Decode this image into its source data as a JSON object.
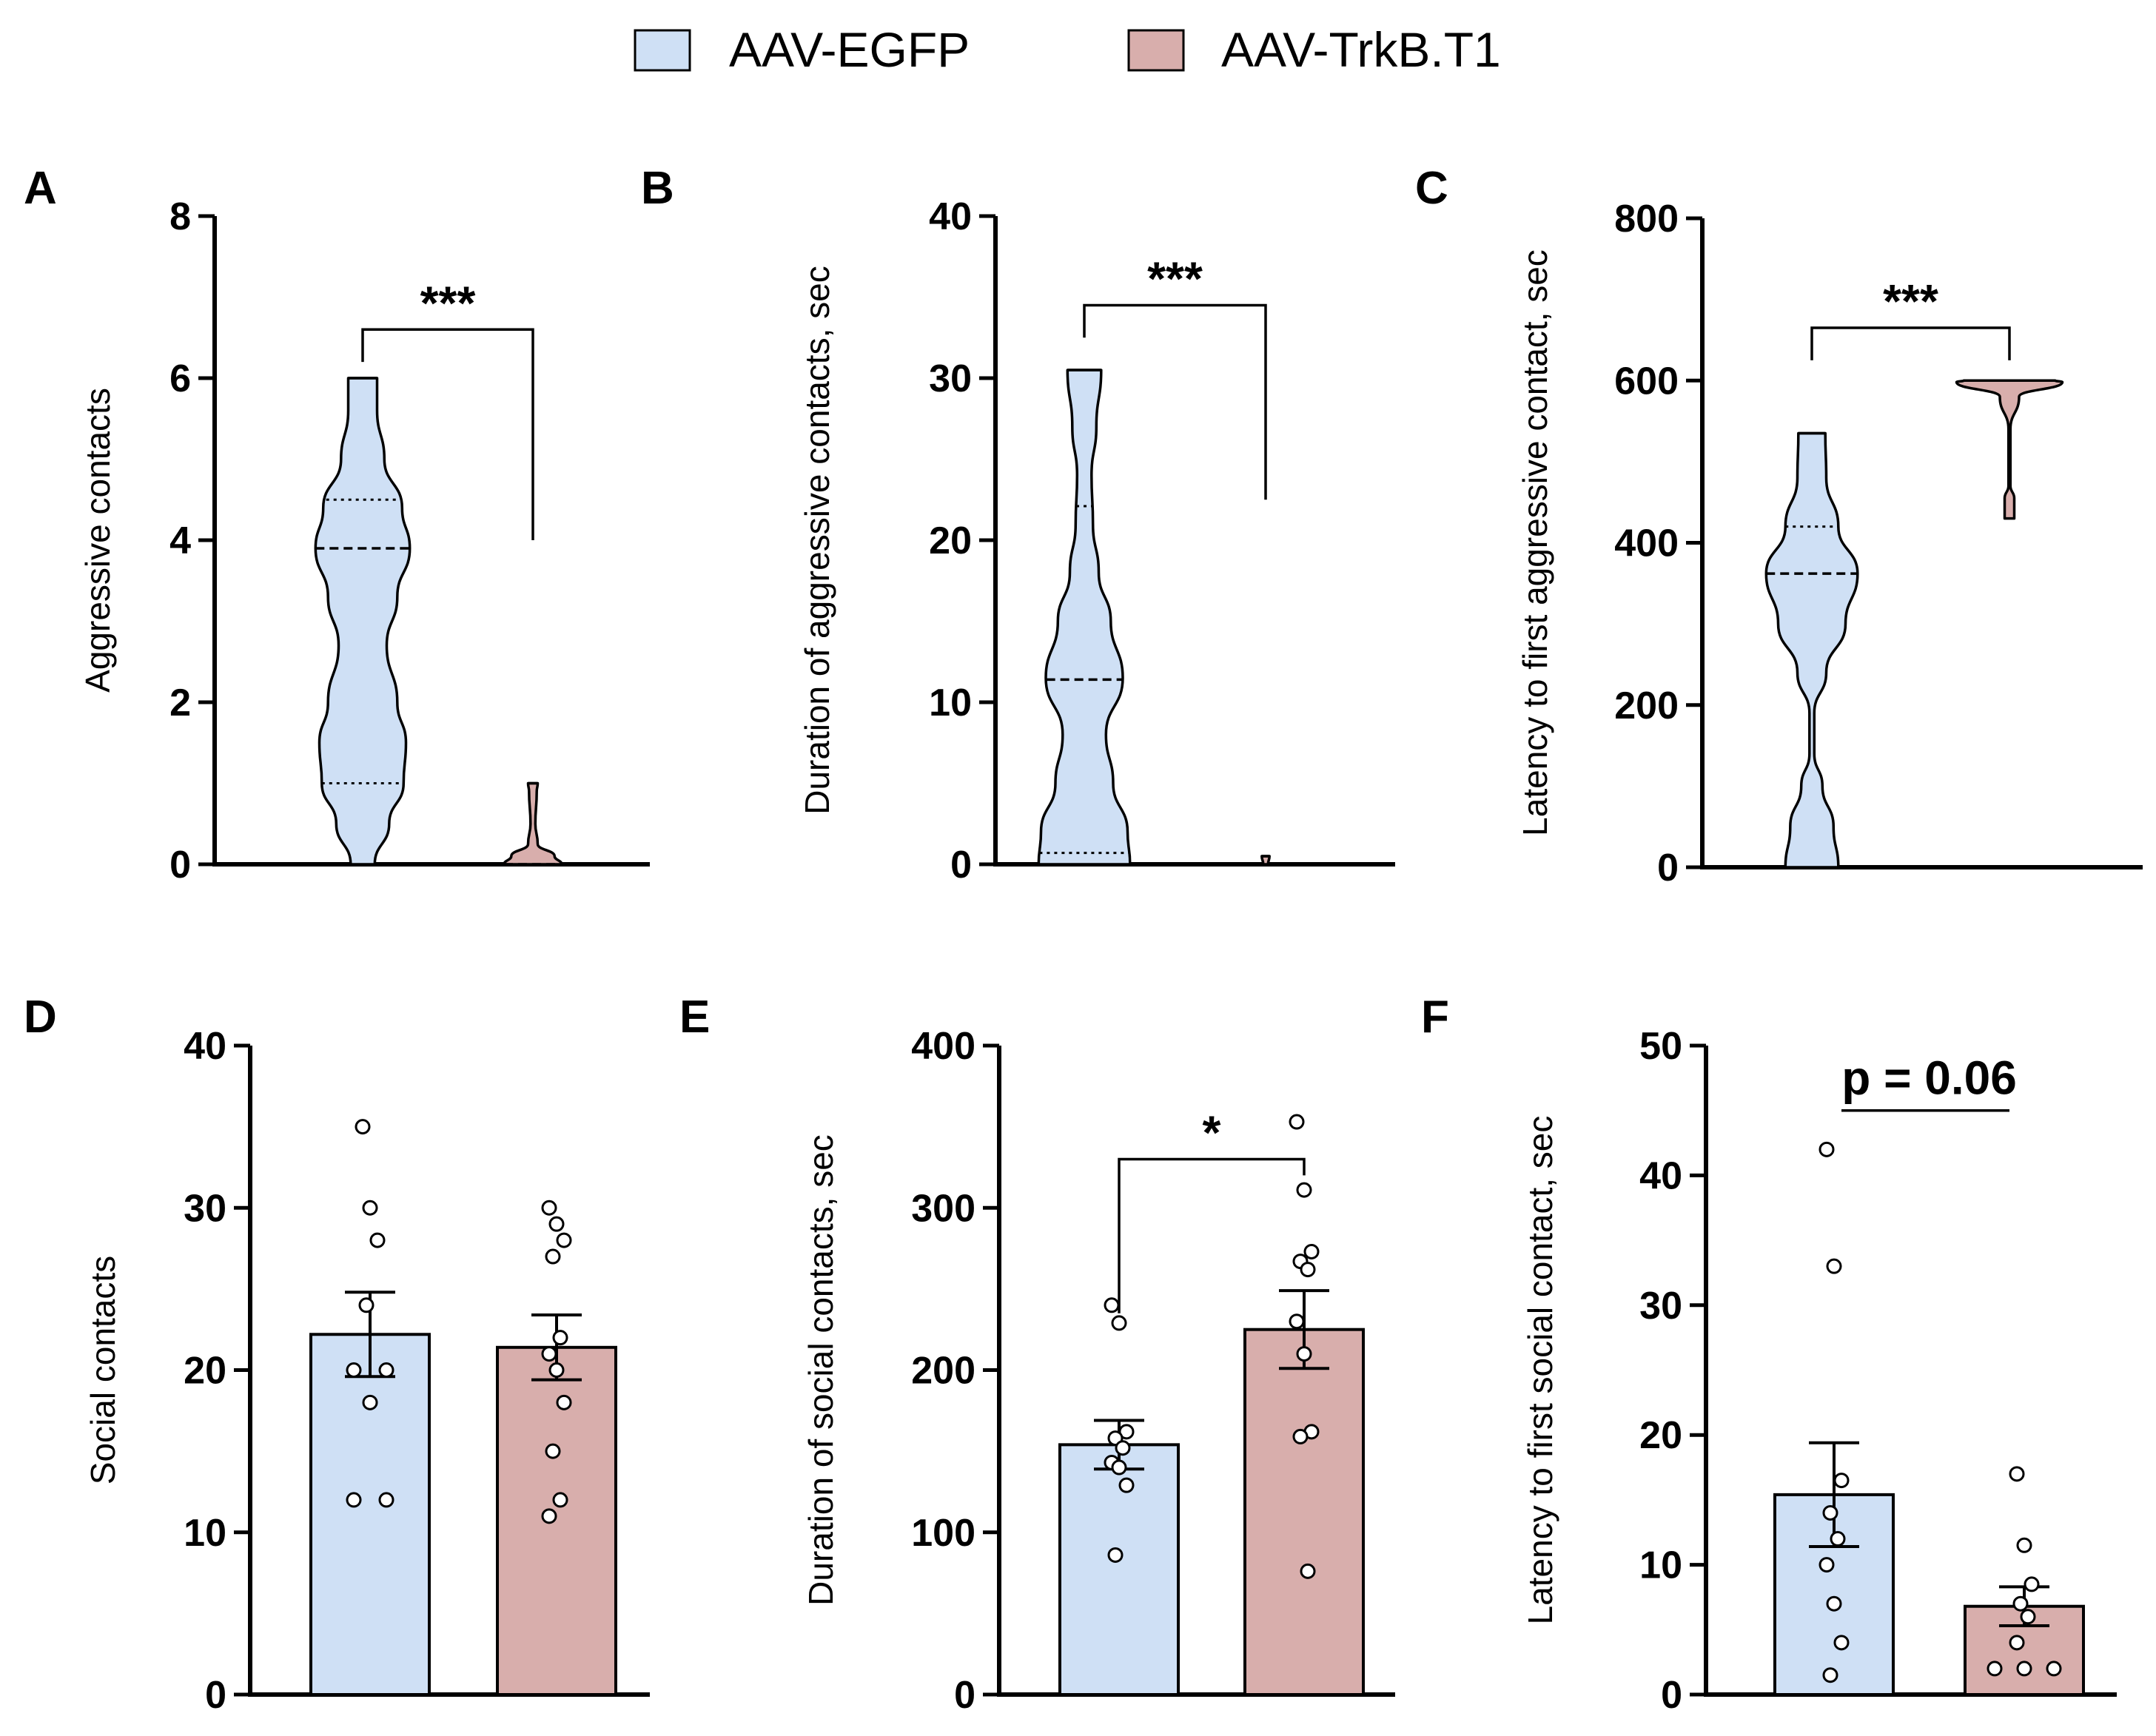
{
  "colors": {
    "egfp": "#cfe0f5",
    "trkb": "#d8aeac",
    "axis": "#000000"
  },
  "legend": {
    "items": [
      {
        "label": "AAV-EGFP",
        "color": "#cfe0f5"
      },
      {
        "label": "AAV-TrkB.T1",
        "color": "#d8aeac"
      }
    ]
  },
  "chart_data": [
    {
      "panel": "A",
      "type": "violin",
      "ylabel": "Aggressive contacts",
      "ylim": [
        0,
        8
      ],
      "yticks": [
        "0",
        "2",
        "4",
        "6",
        "8"
      ],
      "groups": [
        {
          "name": "AAV-EGFP",
          "min": 0,
          "max": 6,
          "median": 3.9,
          "q1": 1.0,
          "q3": 4.5,
          "profile": [
            [
              0,
              0.25
            ],
            [
              0.5,
              0.55
            ],
            [
              1,
              0.85
            ],
            [
              1.5,
              0.9
            ],
            [
              2,
              0.72
            ],
            [
              2.7,
              0.5
            ],
            [
              3.3,
              0.72
            ],
            [
              3.9,
              0.98
            ],
            [
              4.4,
              0.82
            ],
            [
              5,
              0.45
            ],
            [
              5.6,
              0.3
            ],
            [
              6,
              0.3
            ]
          ]
        },
        {
          "name": "AAV-TrkB.T1",
          "min": 0,
          "max": 1,
          "median": 0,
          "q1": 0,
          "q3": 0,
          "profile": [
            [
              0,
              0.6
            ],
            [
              0.1,
              0.45
            ],
            [
              0.25,
              0.1
            ],
            [
              0.5,
              0.05
            ],
            [
              0.9,
              0.08
            ],
            [
              1,
              0.1
            ]
          ]
        }
      ],
      "significance": {
        "label": "***",
        "from": 0,
        "to": 1,
        "y": 6.6,
        "leftEnd": 6.2,
        "rightEnd": 4.0
      }
    },
    {
      "panel": "B",
      "type": "violin",
      "ylabel": "Duration of aggressive contacts, sec",
      "ylim": [
        0,
        40
      ],
      "yticks": [
        "0",
        "10",
        "20",
        "30",
        "40"
      ],
      "groups": [
        {
          "name": "AAV-EGFP",
          "min": 0,
          "max": 30.5,
          "median": 11.4,
          "q1": 0.7,
          "q3": 22.1,
          "profile": [
            [
              0,
              0.95
            ],
            [
              2,
              0.9
            ],
            [
              5,
              0.6
            ],
            [
              8,
              0.45
            ],
            [
              11.5,
              0.8
            ],
            [
              15,
              0.55
            ],
            [
              18,
              0.3
            ],
            [
              21,
              0.18
            ],
            [
              24,
              0.15
            ],
            [
              27,
              0.25
            ],
            [
              30.5,
              0.35
            ]
          ]
        },
        {
          "name": "AAV-TrkB.T1",
          "min": 0,
          "max": 0.5,
          "median": 0,
          "q1": 0,
          "q3": 0,
          "profile": [
            [
              0,
              0.05
            ],
            [
              0.5,
              0.08
            ]
          ]
        }
      ],
      "significance": {
        "label": "***",
        "from": 0,
        "to": 1,
        "y": 34.5,
        "leftEnd": 32.5,
        "rightEnd": 22.5
      }
    },
    {
      "panel": "C",
      "type": "violin",
      "ylabel": "Latency to first aggressive contact, sec",
      "ylim": [
        0,
        800
      ],
      "yticks": [
        "0",
        "200",
        "400",
        "600",
        "800"
      ],
      "groups": [
        {
          "name": "AAV-EGFP",
          "min": 0,
          "max": 535,
          "median": 362,
          "q1": 362,
          "q3": 420,
          "profile": [
            [
              0,
              0.55
            ],
            [
              50,
              0.45
            ],
            [
              100,
              0.22
            ],
            [
              140,
              0.05
            ],
            [
              190,
              0.05
            ],
            [
              240,
              0.3
            ],
            [
              300,
              0.7
            ],
            [
              362,
              0.95
            ],
            [
              420,
              0.55
            ],
            [
              480,
              0.3
            ],
            [
              535,
              0.28
            ]
          ]
        },
        {
          "name": "AAV-TrkB.T1",
          "min": 430,
          "max": 600,
          "median": 600,
          "q1": 600,
          "q3": 600,
          "profile": [
            [
              430,
              0.1
            ],
            [
              455,
              0.1
            ],
            [
              470,
              0.02
            ],
            [
              540,
              0.02
            ],
            [
              580,
              0.2
            ],
            [
              598,
              1.1
            ],
            [
              600,
              0.95
            ]
          ]
        }
      ],
      "significance": {
        "label": "***",
        "from": 0,
        "to": 1,
        "y": 665,
        "leftEnd": 625,
        "rightEnd": 625
      }
    },
    {
      "panel": "D",
      "type": "bar",
      "ylabel": "Social contacts",
      "ylim": [
        0,
        40
      ],
      "yticks": [
        "0",
        "10",
        "20",
        "30",
        "40"
      ],
      "groups": [
        {
          "name": "AAV-EGFP",
          "mean": 22.2,
          "sem": 2.6,
          "points": [
            35,
            30,
            28,
            24,
            20,
            20,
            18,
            12,
            12
          ]
        },
        {
          "name": "AAV-TrkB.T1",
          "mean": 21.4,
          "sem": 2.0,
          "points": [
            30,
            29,
            28,
            27,
            22,
            21,
            20,
            18,
            15,
            12,
            11
          ]
        }
      ]
    },
    {
      "panel": "E",
      "type": "bar",
      "ylabel": "Duration of social contacts, sec",
      "ylim": [
        0,
        400
      ],
      "yticks": [
        "0",
        "100",
        "200",
        "300",
        "400"
      ],
      "groups": [
        {
          "name": "AAV-EGFP",
          "mean": 154,
          "sem": 15,
          "points": [
            240,
            229,
            162,
            158,
            152,
            143,
            140,
            129,
            86
          ]
        },
        {
          "name": "AAV-TrkB.T1",
          "mean": 225,
          "sem": 24,
          "points": [
            353,
            311,
            273,
            267,
            262,
            230,
            210,
            162,
            159,
            76
          ]
        }
      ],
      "significance": {
        "label": "*",
        "from": 0,
        "to": 1,
        "y": 330,
        "leftEnd": 235,
        "rightEnd": 320
      }
    },
    {
      "panel": "F",
      "type": "bar",
      "ylabel": "Latency to first social contact, sec",
      "ylim": [
        0,
        50
      ],
      "yticks": [
        "0",
        "10",
        "20",
        "30",
        "40",
        "50"
      ],
      "groups": [
        {
          "name": "AAV-EGFP",
          "mean": 15.4,
          "sem": 4.0,
          "points": [
            42,
            33,
            16.5,
            14,
            12,
            10,
            7,
            4,
            1.5
          ]
        },
        {
          "name": "AAV-TrkB.T1",
          "mean": 6.8,
          "sem": 1.5,
          "points": [
            17,
            11.5,
            8.5,
            7,
            6,
            4,
            2,
            2,
            2
          ]
        }
      ],
      "significance": {
        "label": "p = 0.06",
        "from": 0,
        "to": 1,
        "y": 45,
        "style": "line"
      }
    }
  ]
}
